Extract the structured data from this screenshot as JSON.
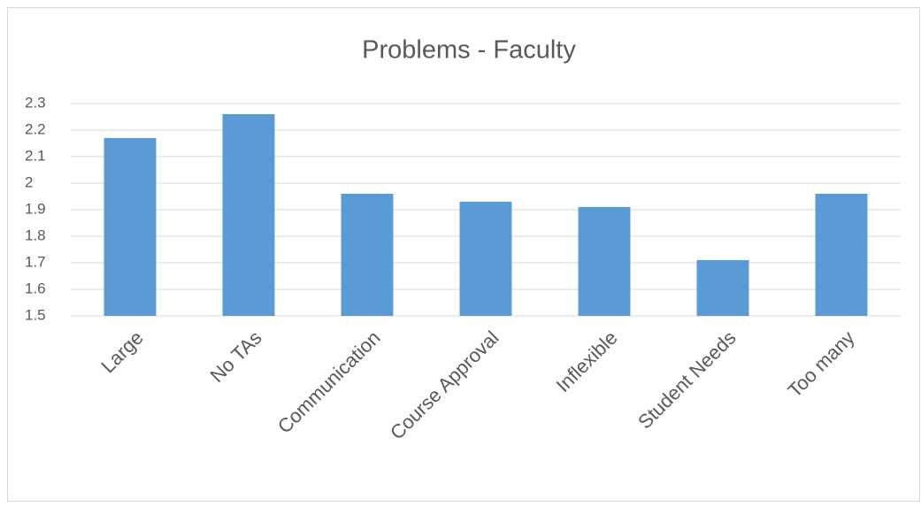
{
  "chart_data": {
    "type": "bar",
    "title": "Problems - Faculty",
    "categories": [
      "Large",
      "No TAs",
      "Communication",
      "Course Approval",
      "Inflexible",
      "Student Needs",
      "Too many"
    ],
    "values": [
      2.17,
      2.26,
      1.96,
      1.93,
      1.91,
      1.71,
      1.96
    ],
    "color": "#5b9bd5",
    "ylim": [
      1.5,
      2.3
    ],
    "yticks": [
      1.5,
      1.6,
      1.7,
      1.8,
      1.9,
      2,
      2.1,
      2.2,
      2.3
    ],
    "grid": true
  }
}
